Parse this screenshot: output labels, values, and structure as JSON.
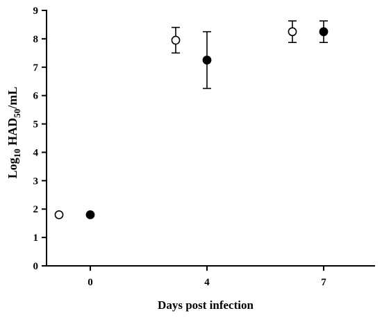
{
  "chart_data": {
    "type": "scatter",
    "title": "",
    "xlabel": "Days post infection",
    "ylabel": {
      "base": "Log",
      "base_sub": "10",
      "mid": " HAD",
      "mid_sub": "50",
      "suffix": "/mL"
    },
    "x_ticks": [
      "0",
      "4",
      "7"
    ],
    "ylim": [
      0,
      9
    ],
    "y_ticks": [
      "0",
      "1",
      "2",
      "3",
      "4",
      "5",
      "6",
      "7",
      "8",
      "9"
    ],
    "grid": false,
    "legend": "none",
    "series": [
      {
        "marker": "open-circle",
        "color": "#000000",
        "points": [
          {
            "x": "0",
            "y": 1.8,
            "error": 0
          },
          {
            "x": "4",
            "y": 7.95,
            "error": 0.45
          },
          {
            "x": "7",
            "y": 8.25,
            "error": 0.38
          }
        ]
      },
      {
        "marker": "filled-circle",
        "color": "#000000",
        "points": [
          {
            "x": "0",
            "y": 1.8,
            "error": 0
          },
          {
            "x": "4",
            "y": 7.25,
            "error": 1.0
          },
          {
            "x": "7",
            "y": 8.25,
            "error": 0.38
          }
        ]
      }
    ]
  }
}
